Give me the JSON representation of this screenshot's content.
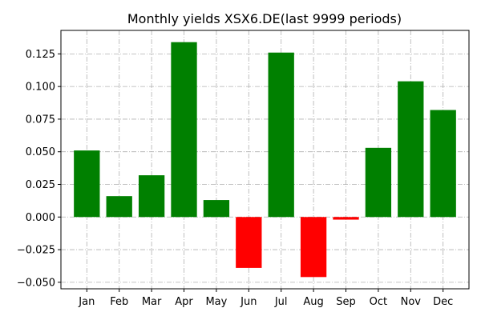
{
  "chart_data": {
    "type": "bar",
    "title": "Monthly yields XSX6.DE(last 9999 periods)",
    "xlabel": "",
    "ylabel": "",
    "categories": [
      "Jan",
      "Feb",
      "Mar",
      "Apr",
      "May",
      "Jun",
      "Jul",
      "Aug",
      "Sep",
      "Oct",
      "Nov",
      "Dec"
    ],
    "values": [
      0.051,
      0.016,
      0.032,
      0.134,
      0.013,
      -0.039,
      0.126,
      -0.046,
      -0.002,
      0.053,
      0.104,
      0.082
    ],
    "ylim": [
      -0.055,
      0.143
    ],
    "yticks": [
      -0.05,
      -0.025,
      0.0,
      0.025,
      0.05,
      0.075,
      0.1,
      0.125
    ],
    "ytick_labels": [
      "−0.050",
      "−0.025",
      "0.000",
      "0.025",
      "0.050",
      "0.075",
      "0.100",
      "0.125"
    ],
    "grid": true,
    "grid_style": "dash-dot",
    "colors": {
      "positive": "#008000",
      "negative": "#ff0000",
      "grid": "#b0b0b0",
      "axes": "#000000"
    }
  }
}
